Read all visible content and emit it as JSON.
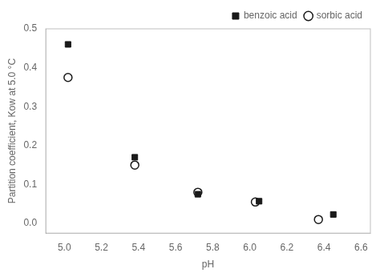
{
  "chart_data": {
    "type": "scatter",
    "x_label": "pH",
    "y_label": "Partition coefficient, Kow at 5.0 °C",
    "series": [
      {
        "name": "benzoic acid",
        "color": "#1a1a1a",
        "marker": "square",
        "x": [
          5.02,
          5.38,
          5.72,
          6.05,
          6.45
        ],
        "values": [
          0.46,
          0.17,
          0.075,
          0.057,
          0.023
        ]
      },
      {
        "name": "sorbic acid",
        "color": "#1a1a1a",
        "marker": "open_circle",
        "x": [
          5.02,
          5.38,
          5.72,
          6.03,
          6.37
        ],
        "values": [
          0.375,
          0.15,
          0.08,
          0.055,
          0.01
        ]
      }
    ],
    "xlim": [
      4.9,
      6.65
    ],
    "ylim": [
      -0.025,
      0.5
    ],
    "xticks": [
      {
        "value": 5.0,
        "label": "5.0"
      },
      5.2,
      5.4,
      5.6,
      5.8,
      {
        "value": 6.0,
        "label": "6.0"
      },
      6.2,
      6.4,
      6.6
    ],
    "yticks": [
      {
        "value": 0.0,
        "label": "0.0"
      },
      0.1,
      0.2,
      0.3,
      0.4,
      0.5
    ],
    "grid": false,
    "legend": "upper right"
  }
}
